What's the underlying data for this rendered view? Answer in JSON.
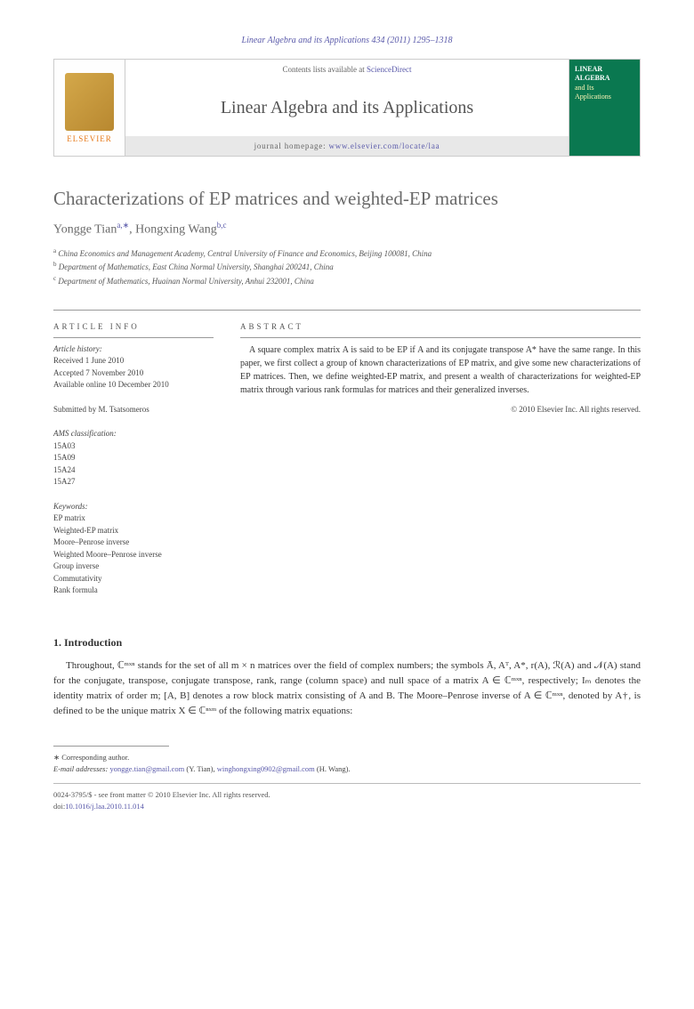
{
  "citation": "Linear Algebra and its Applications 434 (2011) 1295–1318",
  "header": {
    "contents_prefix": "Contents lists available at ",
    "contents_link": "ScienceDirect",
    "journal_name": "Linear Algebra and its Applications",
    "homepage_prefix": "journal homepage: ",
    "homepage_url": "www.elsevier.com/locate/laa",
    "elsevier_label": "ELSEVIER",
    "cover_line1": "LINEAR",
    "cover_line2": "ALGEBRA",
    "cover_line3": "and Its",
    "cover_line4": "Applications"
  },
  "title": "Characterizations of EP matrices and weighted-EP matrices",
  "authors": {
    "a1_name": "Yongge Tian",
    "a1_sup": "a,∗",
    "sep": ", ",
    "a2_name": "Hongxing Wang",
    "a2_sup": "b,c"
  },
  "affiliations": {
    "a": "China Economics and Management Academy, Central University of Finance and Economics, Beijing 100081, China",
    "b": "Department of Mathematics, East China Normal University, Shanghai 200241, China",
    "c": "Department of Mathematics, Huainan Normal University, Anhui 232001, China"
  },
  "info": {
    "heading": "ARTICLE INFO",
    "history_label": "Article history:",
    "received": "Received 1 June 2010",
    "accepted": "Accepted 7 November 2010",
    "online": "Available online 10 December 2010",
    "submitted": "Submitted by M. Tsatsomeros",
    "ams_label": "AMS classification:",
    "ams": [
      "15A03",
      "15A09",
      "15A24",
      "15A27"
    ],
    "keywords_label": "Keywords:",
    "keywords": [
      "EP matrix",
      "Weighted-EP matrix",
      "Moore–Penrose inverse",
      "Weighted Moore–Penrose inverse",
      "Group inverse",
      "Commutativity",
      "Rank formula"
    ]
  },
  "abstract": {
    "heading": "ABSTRACT",
    "text": "A square complex matrix A is said to be EP if A and its conjugate transpose A* have the same range. In this paper, we first collect a group of known characterizations of EP matrix, and give some new characterizations of EP matrices. Then, we define weighted-EP matrix, and present a wealth of characterizations for weighted-EP matrix through various rank formulas for matrices and their generalized inverses.",
    "copyright": "© 2010 Elsevier Inc. All rights reserved."
  },
  "section1": {
    "heading": "1. Introduction",
    "paragraph": "Throughout, ℂᵐˣⁿ stands for the set of all m × n matrices over the field of complex numbers; the symbols Ā, Aᵀ, A*, r(A), ℛ(A) and 𝒩(A) stand for the conjugate, transpose, conjugate transpose, rank, range (column space) and null space of a matrix A ∈ ℂᵐˣⁿ, respectively; Iₘ denotes the identity matrix of order m; [A, B] denotes a row block matrix consisting of A and B. The Moore–Penrose inverse of A ∈ ℂᵐˣⁿ, denoted by A†, is defined to be the unique matrix X ∈ ℂⁿˣᵐ of the following matrix equations:"
  },
  "footnote": {
    "corr": "∗ Corresponding author.",
    "email_label": "E-mail addresses:",
    "email1": "yongge.tian@gmail.com",
    "email1_who": " (Y. Tian), ",
    "email2": "winghongxing0902@gmail.com",
    "email2_who": " (H. Wang)."
  },
  "bottom": {
    "front_matter": "0024-3795/$ - see front matter © 2010 Elsevier Inc. All rights reserved.",
    "doi_label": "doi:",
    "doi": "10.1016/j.laa.2010.11.014"
  },
  "colors": {
    "link": "#5a5aaa",
    "elsevier_orange": "#e67817",
    "cover_green": "#0a7850",
    "text_gray": "#6a6a6a"
  }
}
